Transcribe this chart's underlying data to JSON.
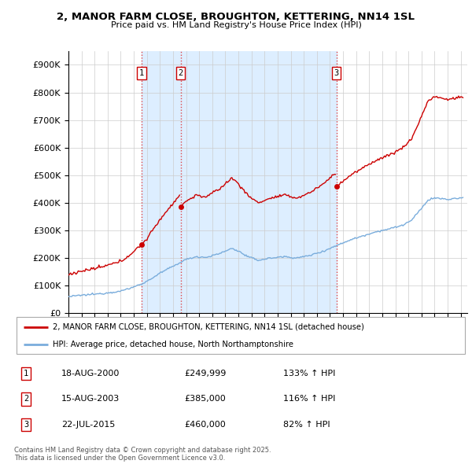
{
  "title": "2, MANOR FARM CLOSE, BROUGHTON, KETTERING, NN14 1SL",
  "subtitle": "Price paid vs. HM Land Registry's House Price Index (HPI)",
  "legend_line1": "2, MANOR FARM CLOSE, BROUGHTON, KETTERING, NN14 1SL (detached house)",
  "legend_line2": "HPI: Average price, detached house, North Northamptonshire",
  "sale_color": "#cc0000",
  "hpi_color": "#7aaddc",
  "vline_color": "#dd3333",
  "shade_color": "#ddeeff",
  "purchase_labels": [
    "1",
    "2",
    "3"
  ],
  "purchase_date_strs": [
    "18-AUG-2000",
    "15-AUG-2003",
    "22-JUL-2015"
  ],
  "purchase_price_strs": [
    "£249,999",
    "£385,000",
    "£460,000"
  ],
  "purchase_hpi_strs": [
    "133% ↑ HPI",
    "116% ↑ HPI",
    "82% ↑ HPI"
  ],
  "footer": "Contains HM Land Registry data © Crown copyright and database right 2025.\nThis data is licensed under the Open Government Licence v3.0.",
  "yticks": [
    0,
    100000,
    200000,
    300000,
    400000,
    500000,
    600000,
    700000,
    800000,
    900000
  ],
  "ytick_labels": [
    "£0",
    "£100K",
    "£200K",
    "£300K",
    "£400K",
    "£500K",
    "£600K",
    "£700K",
    "£800K",
    "£900K"
  ],
  "background_color": "#ffffff"
}
